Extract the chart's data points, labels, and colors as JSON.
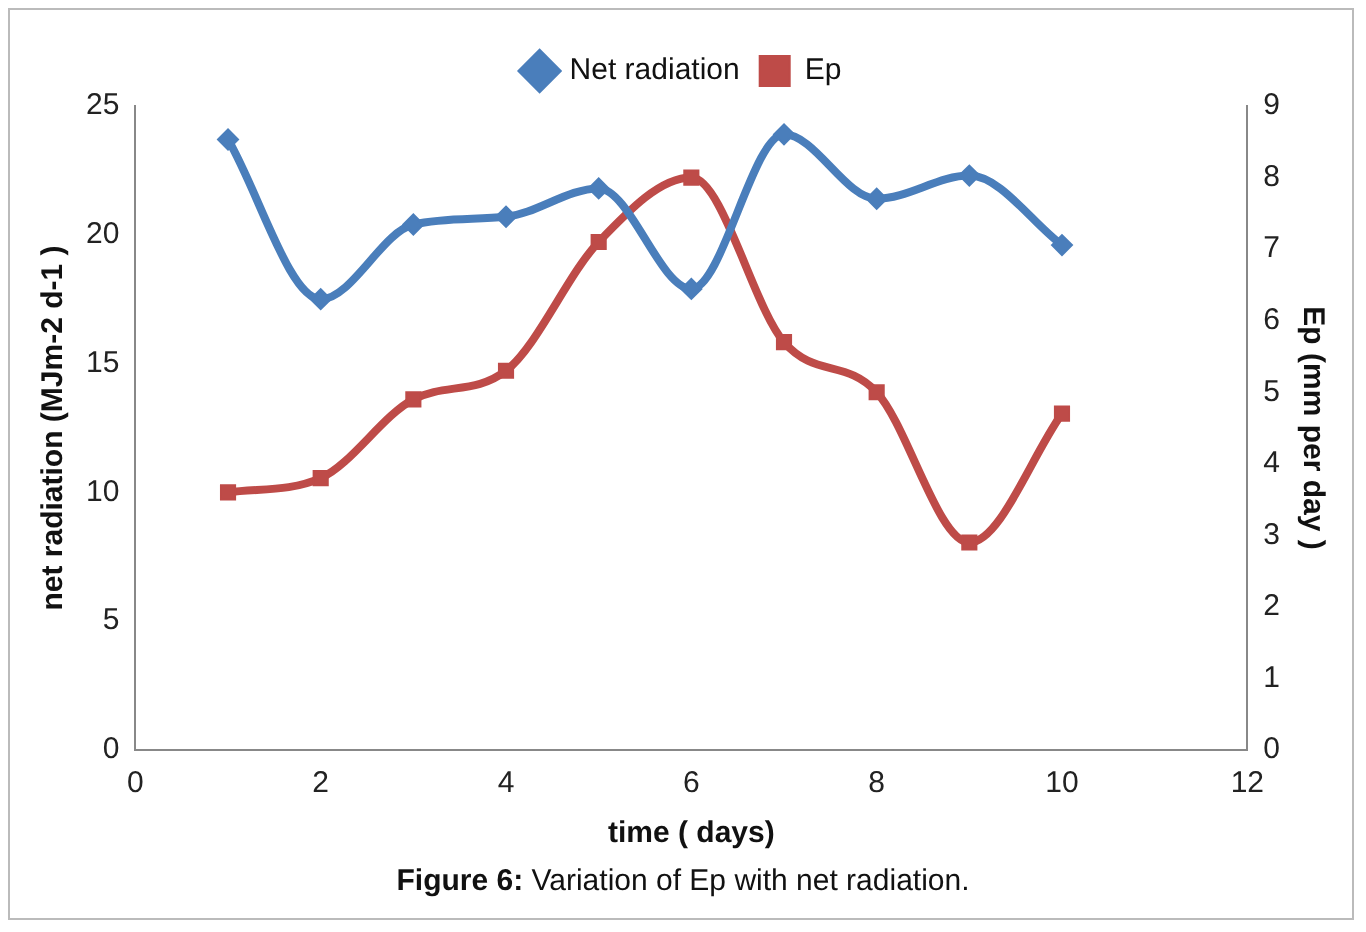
{
  "chart_data": {
    "type": "line",
    "xlabel": "time ( days)",
    "ylabel": "net radiation (MJm-2 d-1 )",
    "y2label": "Ep (mm per day )",
    "x": [
      1,
      2,
      3,
      4,
      5,
      6,
      7,
      8,
      9,
      10
    ],
    "series": [
      {
        "name": "Net radiation",
        "color": "#4a7ebb",
        "marker": "diamond",
        "values": [
          23.7,
          17.5,
          20.4,
          20.7,
          21.8,
          17.9,
          23.9,
          21.4,
          22.3,
          19.6
        ]
      },
      {
        "name": "Ep",
        "color": "#be4b48",
        "marker": "square",
        "axis": "y2",
        "values": [
          3.6,
          3.8,
          4.9,
          5.3,
          7.1,
          8.0,
          5.7,
          5.0,
          2.9,
          4.7
        ]
      }
    ],
    "xlim": [
      0,
      12
    ],
    "xticks": [
      0,
      2,
      4,
      6,
      8,
      10,
      12
    ],
    "ylim": [
      0,
      25
    ],
    "yticks": [
      0,
      5,
      10,
      15,
      20,
      25
    ],
    "y2lim": [
      0,
      9
    ],
    "y2ticks": [
      0,
      1,
      2,
      3,
      4,
      5,
      6,
      7,
      8,
      9
    ],
    "grid": false,
    "legend": "top",
    "annotations": [
      "Figure 6: Variation of Ep with net radiation."
    ]
  }
}
